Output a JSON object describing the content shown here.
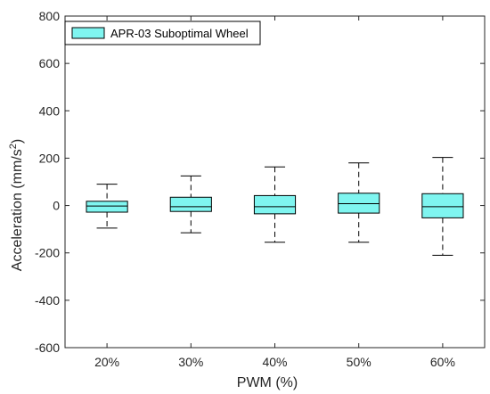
{
  "chart_data": {
    "type": "box",
    "xlabel": "PWM (%)",
    "ylabel_main": "Acceleration (mm/s",
    "ylabel_sup": "2",
    "ylabel_close": ")",
    "ylim": [
      -600,
      800
    ],
    "yticks": [
      800,
      600,
      400,
      200,
      0,
      -200,
      -400,
      -600
    ],
    "categories": [
      "20%",
      "30%",
      "40%",
      "50%",
      "60%"
    ],
    "series": [
      {
        "name": "APR-03 Suboptimal Wheel",
        "color": "#7ff5f0",
        "boxes": [
          {
            "min": -95,
            "q1": -28,
            "median": -2,
            "q3": 18,
            "max": 90
          },
          {
            "min": -115,
            "q1": -25,
            "median": -5,
            "q3": 35,
            "max": 125
          },
          {
            "min": -155,
            "q1": -35,
            "median": -5,
            "q3": 42,
            "max": 163
          },
          {
            "min": -155,
            "q1": -32,
            "median": 8,
            "q3": 52,
            "max": 180
          },
          {
            "min": -210,
            "q1": -52,
            "median": -5,
            "q3": 50,
            "max": 203
          }
        ]
      }
    ],
    "legend": {
      "position": "top-left"
    },
    "grid": false
  }
}
